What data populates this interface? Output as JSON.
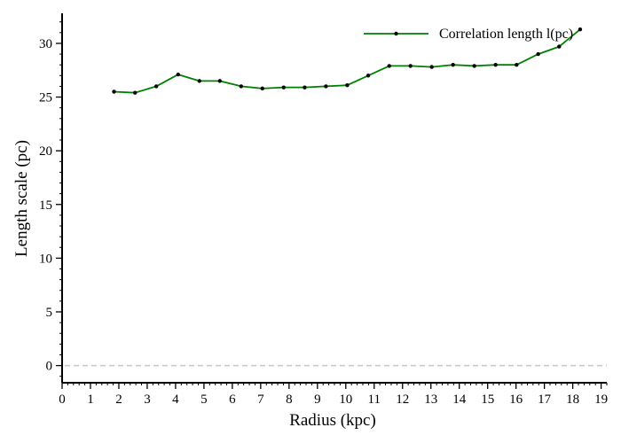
{
  "chart_data": {
    "type": "line",
    "xlabel": "Radius (kpc)",
    "ylabel": "Length scale (pc)",
    "xlim": [
      0,
      19.2
    ],
    "ylim": [
      -1.6,
      32.8
    ],
    "x_ticks": [
      0,
      1,
      2,
      3,
      4,
      5,
      6,
      7,
      8,
      9,
      10,
      11,
      12,
      13,
      14,
      15,
      16,
      17,
      18,
      19
    ],
    "y_ticks": [
      0,
      5,
      10,
      15,
      20,
      25,
      30
    ],
    "grid": false,
    "legend_position": "top-right",
    "reference_line": {
      "y": 0,
      "style": "dashed",
      "color": "#c8c8c8"
    },
    "series": [
      {
        "name": "Correlation length l(pc)",
        "color": "#008000",
        "marker_color": "#000000",
        "x": [
          1.83,
          2.57,
          3.32,
          4.09,
          4.84,
          5.56,
          6.31,
          7.06,
          7.81,
          8.55,
          9.3,
          10.05,
          10.79,
          11.53,
          12.28,
          13.03,
          13.78,
          14.53,
          15.28,
          16.02,
          16.78,
          17.52,
          18.26
        ],
        "y": [
          25.5,
          25.4,
          26.0,
          27.1,
          26.5,
          26.5,
          26.0,
          25.8,
          25.9,
          25.9,
          26.0,
          26.1,
          27.0,
          27.9,
          27.9,
          27.8,
          28.0,
          27.9,
          28.0,
          28.0,
          29.0,
          29.7,
          31.3
        ]
      }
    ]
  }
}
